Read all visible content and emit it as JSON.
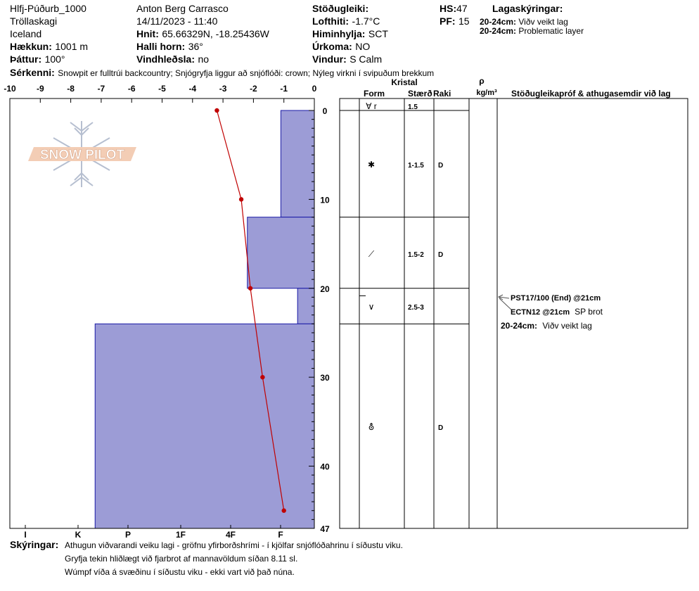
{
  "header": {
    "pit_name": "Hlfj-Púðurb_1000",
    "region": "Tröllaskagi",
    "country": "Iceland",
    "elevation_label": "Hækkun:",
    "elevation_value": "1001 m",
    "aspect_label": "Þáttur:",
    "aspect_value": "100°",
    "observer": "Anton Berg Carrasco",
    "datetime": "14/11/2023 - 11:40",
    "coords_label": "Hnit:",
    "coords_value": "65.66329N, -18.25436W",
    "slope_label": "Halli horn:",
    "slope_value": "36°",
    "wind_loading_label": "Vindhleðsla:",
    "wind_loading_value": "no",
    "stability_label": "Stöðugleiki:",
    "air_temp_label": "Lofthiti:",
    "air_temp_value": "-1.7°C",
    "sky_label": "Himinhylja:",
    "sky_value": "SCT",
    "precip_label": "Úrkoma:",
    "precip_value": "NO",
    "wind_label": "Vindur:",
    "wind_value": "S Calm",
    "hs_label": "HS:",
    "hs_value": "47",
    "pf_label": "PF:",
    "pf_value": "15",
    "layer_notes_title": "Lagaskýringar:",
    "layer_notes": [
      {
        "depth": "20-24cm:",
        "text": "Viðv veikt lag"
      },
      {
        "depth": "20-24cm:",
        "text": "Problematic layer"
      }
    ],
    "features_label": "Sérkenni:",
    "features_value": "Snowpit er fulltrúi backcountry; Snjógryfja liggur að snjóflóði: crown; Nýleg virkni í svipuðum brekkum"
  },
  "logo_text": "SNOW PILOT",
  "table": {
    "crystal_label": "Kristal",
    "form_label": "Form",
    "size_label": "Stærð",
    "moisture_label": "Raki",
    "density_symbol": "ρ",
    "density_unit": "kg/m³",
    "stability_col_label": "Stöðugleikapróf & athugasemdir við lag",
    "rows": [
      {
        "form": "∀ r",
        "size": "1.5",
        "moisture": ""
      },
      {
        "form": "✱",
        "size": "1-1.5",
        "moisture": "D"
      },
      {
        "form": "⟋",
        "size": "1.5-2",
        "moisture": "D"
      },
      {
        "form": "∨",
        "size": "2.5-3",
        "moisture": ""
      },
      {
        "form": "⛢",
        "size": "",
        "moisture": "D"
      }
    ],
    "tests": [
      {
        "label": "PST17/100 (End) @21cm",
        "note": ""
      },
      {
        "label": "ECTN12 @21cm",
        "note": "SP brot"
      }
    ],
    "layer_comment": {
      "depth": "20-24cm:",
      "text": "Viðv veikt lag"
    }
  },
  "footer": {
    "comments_label": "Skýringar:",
    "lines": [
      "Athugun viðvarandi veiku lagi - gröfnu yfirborðshrími - í kjölfar snjóflóðahrinu í síðustu viku.",
      "Gryfja tekin hliðlægt við fjarbrot af mannavöldum síðan 8.11 sl.",
      "Wúmpf víða á svæðinu í síðustu viku - ekki vart við það núna."
    ]
  },
  "colors": {
    "hardness_fill": "#9c9cd6",
    "hardness_stroke": "#1a1aa6",
    "temp_line": "#c00000"
  },
  "chart_data": {
    "type": "snow_profile",
    "temperature_axis": {
      "ticks": [
        "-10",
        "-9",
        "-8",
        "-7",
        "-6",
        "-5",
        "-4",
        "-3",
        "-2",
        "-1",
        "0"
      ],
      "range": [
        -10,
        0
      ]
    },
    "depth_axis": {
      "ticks": [
        "0",
        "10",
        "20",
        "30",
        "40",
        "47"
      ],
      "range": [
        0,
        47
      ]
    },
    "hardness_axis": {
      "ticks": [
        "I",
        "K",
        "P",
        "1F",
        "4F",
        "F"
      ]
    },
    "hardness_layers": [
      {
        "top": 0,
        "bottom": 12,
        "temp_scale_value": -1.1
      },
      {
        "top": 12,
        "bottom": 20,
        "temp_scale_value": -2.2
      },
      {
        "top": 20,
        "bottom": 24,
        "temp_scale_value": -0.55
      },
      {
        "top": 24,
        "bottom": 47,
        "temp_scale_value": -7.2
      }
    ],
    "temperature_profile": [
      {
        "depth": 0,
        "temp": -3.2
      },
      {
        "depth": 10,
        "temp": -2.4
      },
      {
        "depth": 20,
        "temp": -2.1
      },
      {
        "depth": 30,
        "temp": -1.7
      },
      {
        "depth": 45,
        "temp": -1.0
      }
    ],
    "layer_boundaries": [
      12,
      20,
      24
    ],
    "test_depth": 21
  }
}
